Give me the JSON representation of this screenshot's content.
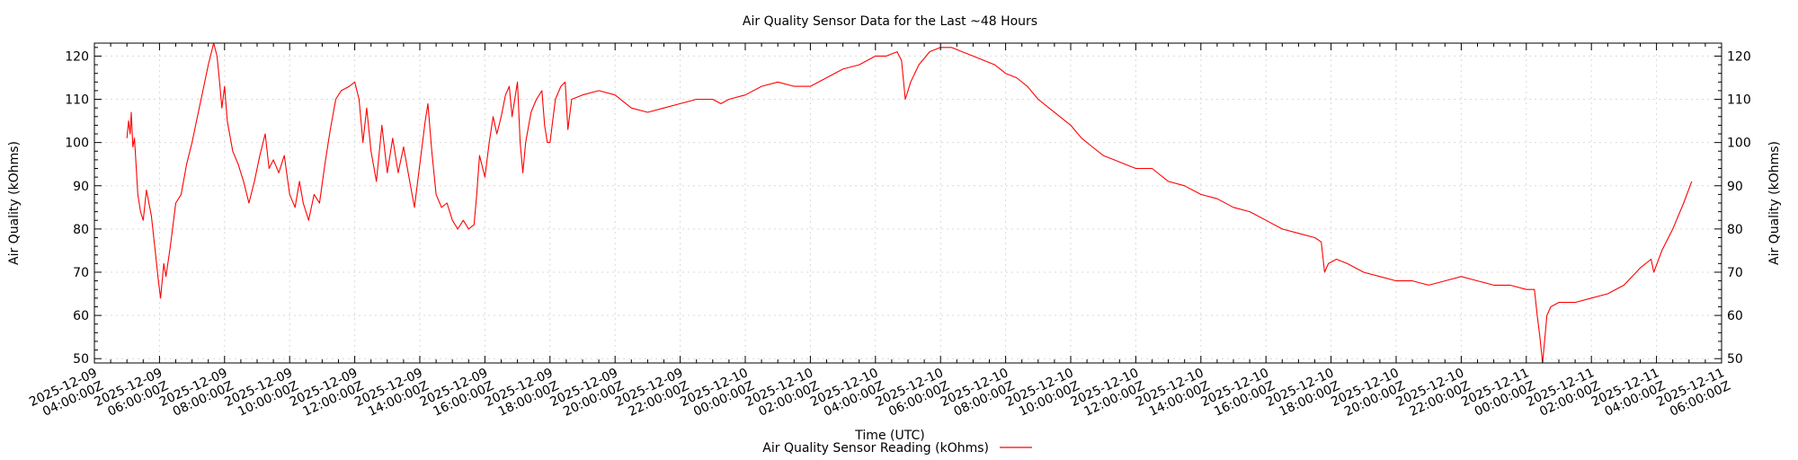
{
  "chart_data": {
    "type": "line",
    "title": "Air Quality Sensor Data for the Last ~48 Hours",
    "xlabel": "Time (UTC)",
    "ylabel": "Air Quality (kOhms)",
    "ylabel_right": "Air Quality (kOhms)",
    "ylim": [
      49,
      123
    ],
    "yticks": [
      50,
      60,
      70,
      80,
      90,
      100,
      110,
      120
    ],
    "xlim": [
      "2025-12-09T04:00:00Z",
      "2025-12-11T06:00:00Z"
    ],
    "xticks": [
      {
        "label_date": "2025-12-09",
        "label_time": "04:00:00Z",
        "t": "2025-12-09T04:00:00Z"
      },
      {
        "label_date": "2025-12-09",
        "label_time": "06:00:00Z",
        "t": "2025-12-09T06:00:00Z"
      },
      {
        "label_date": "2025-12-09",
        "label_time": "08:00:00Z",
        "t": "2025-12-09T08:00:00Z"
      },
      {
        "label_date": "2025-12-09",
        "label_time": "10:00:00Z",
        "t": "2025-12-09T10:00:00Z"
      },
      {
        "label_date": "2025-12-09",
        "label_time": "12:00:00Z",
        "t": "2025-12-09T12:00:00Z"
      },
      {
        "label_date": "2025-12-09",
        "label_time": "14:00:00Z",
        "t": "2025-12-09T14:00:00Z"
      },
      {
        "label_date": "2025-12-09",
        "label_time": "16:00:00Z",
        "t": "2025-12-09T16:00:00Z"
      },
      {
        "label_date": "2025-12-09",
        "label_time": "18:00:00Z",
        "t": "2025-12-09T18:00:00Z"
      },
      {
        "label_date": "2025-12-09",
        "label_time": "20:00:00Z",
        "t": "2025-12-09T20:00:00Z"
      },
      {
        "label_date": "2025-12-09",
        "label_time": "22:00:00Z",
        "t": "2025-12-09T22:00:00Z"
      },
      {
        "label_date": "2025-12-10",
        "label_time": "00:00:00Z",
        "t": "2025-12-10T00:00:00Z"
      },
      {
        "label_date": "2025-12-10",
        "label_time": "02:00:00Z",
        "t": "2025-12-10T02:00:00Z"
      },
      {
        "label_date": "2025-12-10",
        "label_time": "04:00:00Z",
        "t": "2025-12-10T04:00:00Z"
      },
      {
        "label_date": "2025-12-10",
        "label_time": "06:00:00Z",
        "t": "2025-12-10T06:00:00Z"
      },
      {
        "label_date": "2025-12-10",
        "label_time": "08:00:00Z",
        "t": "2025-12-10T08:00:00Z"
      },
      {
        "label_date": "2025-12-10",
        "label_time": "10:00:00Z",
        "t": "2025-12-10T10:00:00Z"
      },
      {
        "label_date": "2025-12-10",
        "label_time": "12:00:00Z",
        "t": "2025-12-10T12:00:00Z"
      },
      {
        "label_date": "2025-12-10",
        "label_time": "14:00:00Z",
        "t": "2025-12-10T14:00:00Z"
      },
      {
        "label_date": "2025-12-10",
        "label_time": "16:00:00Z",
        "t": "2025-12-10T16:00:00Z"
      },
      {
        "label_date": "2025-12-10",
        "label_time": "18:00:00Z",
        "t": "2025-12-10T18:00:00Z"
      },
      {
        "label_date": "2025-12-10",
        "label_time": "20:00:00Z",
        "t": "2025-12-10T20:00:00Z"
      },
      {
        "label_date": "2025-12-10",
        "label_time": "22:00:00Z",
        "t": "2025-12-10T22:00:00Z"
      },
      {
        "label_date": "2025-12-11",
        "label_time": "00:00:00Z",
        "t": "2025-12-11T00:00:00Z"
      },
      {
        "label_date": "2025-12-11",
        "label_time": "02:00:00Z",
        "t": "2025-12-11T02:00:00Z"
      },
      {
        "label_date": "2025-12-11",
        "label_time": "04:00:00Z",
        "t": "2025-12-11T04:00:00Z"
      },
      {
        "label_date": "2025-12-11",
        "label_time": "06:00:00Z",
        "t": "2025-12-11T06:00:00Z"
      }
    ],
    "grid": true,
    "legend_position": "bottom-center",
    "series": [
      {
        "name": "Air Quality Sensor Reading (kOhms)",
        "color": "#ff0000",
        "points": [
          [
            "2025-12-09T05:00:00Z",
            101
          ],
          [
            "2025-12-09T05:03:00Z",
            105
          ],
          [
            "2025-12-09T05:06:00Z",
            102
          ],
          [
            "2025-12-09T05:08:00Z",
            107
          ],
          [
            "2025-12-09T05:11:00Z",
            99
          ],
          [
            "2025-12-09T05:14:00Z",
            101
          ],
          [
            "2025-12-09T05:20:00Z",
            88
          ],
          [
            "2025-12-09T05:25:00Z",
            84
          ],
          [
            "2025-12-09T05:30:00Z",
            82
          ],
          [
            "2025-12-09T05:36:00Z",
            89
          ],
          [
            "2025-12-09T05:45:00Z",
            83
          ],
          [
            "2025-12-09T05:52:00Z",
            75
          ],
          [
            "2025-12-09T05:58:00Z",
            68
          ],
          [
            "2025-12-09T06:02:00Z",
            64
          ],
          [
            "2025-12-09T06:08:00Z",
            72
          ],
          [
            "2025-12-09T06:12:00Z",
            69
          ],
          [
            "2025-12-09T06:20:00Z",
            76
          ],
          [
            "2025-12-09T06:30:00Z",
            86
          ],
          [
            "2025-12-09T06:40:00Z",
            88
          ],
          [
            "2025-12-09T06:50:00Z",
            95
          ],
          [
            "2025-12-09T07:00:00Z",
            100
          ],
          [
            "2025-12-09T07:10:00Z",
            106
          ],
          [
            "2025-12-09T07:20:00Z",
            112
          ],
          [
            "2025-12-09T07:30:00Z",
            118
          ],
          [
            "2025-12-09T07:40:00Z",
            123
          ],
          [
            "2025-12-09T07:46:00Z",
            120
          ],
          [
            "2025-12-09T07:50:00Z",
            115
          ],
          [
            "2025-12-09T07:55:00Z",
            108
          ],
          [
            "2025-12-09T08:00:00Z",
            113
          ],
          [
            "2025-12-09T08:05:00Z",
            105
          ],
          [
            "2025-12-09T08:15:00Z",
            98
          ],
          [
            "2025-12-09T08:25:00Z",
            95
          ],
          [
            "2025-12-09T08:35:00Z",
            91
          ],
          [
            "2025-12-09T08:45:00Z",
            86
          ],
          [
            "2025-12-09T08:55:00Z",
            91
          ],
          [
            "2025-12-09T09:05:00Z",
            97
          ],
          [
            "2025-12-09T09:15:00Z",
            102
          ],
          [
            "2025-12-09T09:22:00Z",
            94
          ],
          [
            "2025-12-09T09:30:00Z",
            96
          ],
          [
            "2025-12-09T09:40:00Z",
            93
          ],
          [
            "2025-12-09T09:50:00Z",
            97
          ],
          [
            "2025-12-09T10:00:00Z",
            88
          ],
          [
            "2025-12-09T10:10:00Z",
            85
          ],
          [
            "2025-12-09T10:18:00Z",
            91
          ],
          [
            "2025-12-09T10:25:00Z",
            86
          ],
          [
            "2025-12-09T10:35:00Z",
            82
          ],
          [
            "2025-12-09T10:45:00Z",
            88
          ],
          [
            "2025-12-09T10:55:00Z",
            86
          ],
          [
            "2025-12-09T11:05:00Z",
            95
          ],
          [
            "2025-12-09T11:15:00Z",
            103
          ],
          [
            "2025-12-09T11:25:00Z",
            110
          ],
          [
            "2025-12-09T11:35:00Z",
            112
          ],
          [
            "2025-12-09T11:50:00Z",
            113
          ],
          [
            "2025-12-09T12:00:00Z",
            114
          ],
          [
            "2025-12-09T12:08:00Z",
            110
          ],
          [
            "2025-12-09T12:15:00Z",
            100
          ],
          [
            "2025-12-09T12:22:00Z",
            108
          ],
          [
            "2025-12-09T12:30:00Z",
            98
          ],
          [
            "2025-12-09T12:40:00Z",
            91
          ],
          [
            "2025-12-09T12:50:00Z",
            104
          ],
          [
            "2025-12-09T13:00:00Z",
            93
          ],
          [
            "2025-12-09T13:10:00Z",
            101
          ],
          [
            "2025-12-09T13:20:00Z",
            93
          ],
          [
            "2025-12-09T13:30:00Z",
            99
          ],
          [
            "2025-12-09T13:40:00Z",
            92
          ],
          [
            "2025-12-09T13:50:00Z",
            85
          ],
          [
            "2025-12-09T14:00:00Z",
            95
          ],
          [
            "2025-12-09T14:10:00Z",
            105
          ],
          [
            "2025-12-09T14:15:00Z",
            109
          ],
          [
            "2025-12-09T14:22:00Z",
            98
          ],
          [
            "2025-12-09T14:30:00Z",
            88
          ],
          [
            "2025-12-09T14:40:00Z",
            85
          ],
          [
            "2025-12-09T14:50:00Z",
            86
          ],
          [
            "2025-12-09T15:00:00Z",
            82
          ],
          [
            "2025-12-09T15:10:00Z",
            80
          ],
          [
            "2025-12-09T15:20:00Z",
            82
          ],
          [
            "2025-12-09T15:30:00Z",
            80
          ],
          [
            "2025-12-09T15:40:00Z",
            81
          ],
          [
            "2025-12-09T15:45:00Z",
            88
          ],
          [
            "2025-12-09T15:50:00Z",
            97
          ],
          [
            "2025-12-09T16:00:00Z",
            92
          ],
          [
            "2025-12-09T16:08:00Z",
            100
          ],
          [
            "2025-12-09T16:15:00Z",
            106
          ],
          [
            "2025-12-09T16:22:00Z",
            102
          ],
          [
            "2025-12-09T16:30:00Z",
            106
          ],
          [
            "2025-12-09T16:38:00Z",
            111
          ],
          [
            "2025-12-09T16:45:00Z",
            113
          ],
          [
            "2025-12-09T16:50:00Z",
            106
          ],
          [
            "2025-12-09T16:55:00Z",
            110
          ],
          [
            "2025-12-09T17:00:00Z",
            114
          ],
          [
            "2025-12-09T17:05:00Z",
            100
          ],
          [
            "2025-12-09T17:10:00Z",
            93
          ],
          [
            "2025-12-09T17:15:00Z",
            100
          ],
          [
            "2025-12-09T17:25:00Z",
            107
          ],
          [
            "2025-12-09T17:35:00Z",
            110
          ],
          [
            "2025-12-09T17:45:00Z",
            112
          ],
          [
            "2025-12-09T17:50:00Z",
            104
          ],
          [
            "2025-12-09T17:55:00Z",
            100
          ],
          [
            "2025-12-09T18:00:00Z",
            100
          ],
          [
            "2025-12-09T18:10:00Z",
            110
          ],
          [
            "2025-12-09T18:20:00Z",
            113
          ],
          [
            "2025-12-09T18:28:00Z",
            114
          ],
          [
            "2025-12-09T18:33:00Z",
            103
          ],
          [
            "2025-12-09T18:40:00Z",
            110
          ],
          [
            "2025-12-09T19:00:00Z",
            111
          ],
          [
            "2025-12-09T19:30:00Z",
            112
          ],
          [
            "2025-12-09T20:00:00Z",
            111
          ],
          [
            "2025-12-09T20:30:00Z",
            108
          ],
          [
            "2025-12-09T21:00:00Z",
            107
          ],
          [
            "2025-12-09T21:30:00Z",
            108
          ],
          [
            "2025-12-09T22:00:00Z",
            109
          ],
          [
            "2025-12-09T22:30:00Z",
            110
          ],
          [
            "2025-12-09T23:00:00Z",
            110
          ],
          [
            "2025-12-09T23:15:00Z",
            109
          ],
          [
            "2025-12-09T23:30:00Z",
            110
          ],
          [
            "2025-12-10T00:00:00Z",
            111
          ],
          [
            "2025-12-10T00:30:00Z",
            113
          ],
          [
            "2025-12-10T01:00:00Z",
            114
          ],
          [
            "2025-12-10T01:30:00Z",
            113
          ],
          [
            "2025-12-10T02:00:00Z",
            113
          ],
          [
            "2025-12-10T02:30:00Z",
            115
          ],
          [
            "2025-12-10T03:00:00Z",
            117
          ],
          [
            "2025-12-10T03:30:00Z",
            118
          ],
          [
            "2025-12-10T04:00:00Z",
            120
          ],
          [
            "2025-12-10T04:20:00Z",
            120
          ],
          [
            "2025-12-10T04:40:00Z",
            121
          ],
          [
            "2025-12-10T04:48:00Z",
            119
          ],
          [
            "2025-12-10T04:55:00Z",
            110
          ],
          [
            "2025-12-10T05:05:00Z",
            114
          ],
          [
            "2025-12-10T05:20:00Z",
            118
          ],
          [
            "2025-12-10T05:40:00Z",
            121
          ],
          [
            "2025-12-10T06:00:00Z",
            122
          ],
          [
            "2025-12-10T06:20:00Z",
            122
          ],
          [
            "2025-12-10T06:40:00Z",
            121
          ],
          [
            "2025-12-10T07:00:00Z",
            120
          ],
          [
            "2025-12-10T07:20:00Z",
            119
          ],
          [
            "2025-12-10T07:40:00Z",
            118
          ],
          [
            "2025-12-10T08:00:00Z",
            116
          ],
          [
            "2025-12-10T08:20:00Z",
            115
          ],
          [
            "2025-12-10T08:40:00Z",
            113
          ],
          [
            "2025-12-10T09:00:00Z",
            110
          ],
          [
            "2025-12-10T09:20:00Z",
            108
          ],
          [
            "2025-12-10T09:40:00Z",
            106
          ],
          [
            "2025-12-10T10:00:00Z",
            104
          ],
          [
            "2025-12-10T10:20:00Z",
            101
          ],
          [
            "2025-12-10T10:40:00Z",
            99
          ],
          [
            "2025-12-10T11:00:00Z",
            97
          ],
          [
            "2025-12-10T11:20:00Z",
            96
          ],
          [
            "2025-12-10T11:40:00Z",
            95
          ],
          [
            "2025-12-10T12:00:00Z",
            94
          ],
          [
            "2025-12-10T12:30:00Z",
            94
          ],
          [
            "2025-12-10T13:00:00Z",
            91
          ],
          [
            "2025-12-10T13:30:00Z",
            90
          ],
          [
            "2025-12-10T14:00:00Z",
            88
          ],
          [
            "2025-12-10T14:30:00Z",
            87
          ],
          [
            "2025-12-10T15:00:00Z",
            85
          ],
          [
            "2025-12-10T15:30:00Z",
            84
          ],
          [
            "2025-12-10T16:00:00Z",
            82
          ],
          [
            "2025-12-10T16:30:00Z",
            80
          ],
          [
            "2025-12-10T17:00:00Z",
            79
          ],
          [
            "2025-12-10T17:30:00Z",
            78
          ],
          [
            "2025-12-10T17:42:00Z",
            77
          ],
          [
            "2025-12-10T17:48:00Z",
            70
          ],
          [
            "2025-12-10T17:55:00Z",
            72
          ],
          [
            "2025-12-10T18:10:00Z",
            73
          ],
          [
            "2025-12-10T18:30:00Z",
            72
          ],
          [
            "2025-12-10T19:00:00Z",
            70
          ],
          [
            "2025-12-10T19:30:00Z",
            69
          ],
          [
            "2025-12-10T20:00:00Z",
            68
          ],
          [
            "2025-12-10T20:30:00Z",
            68
          ],
          [
            "2025-12-10T21:00:00Z",
            67
          ],
          [
            "2025-12-10T21:30:00Z",
            68
          ],
          [
            "2025-12-10T22:00:00Z",
            69
          ],
          [
            "2025-12-10T22:30:00Z",
            68
          ],
          [
            "2025-12-10T23:00:00Z",
            67
          ],
          [
            "2025-12-10T23:30:00Z",
            67
          ],
          [
            "2025-12-11T00:00:00Z",
            66
          ],
          [
            "2025-12-11T00:15:00Z",
            66
          ],
          [
            "2025-12-11T00:20:00Z",
            60
          ],
          [
            "2025-12-11T00:25:00Z",
            55
          ],
          [
            "2025-12-11T00:30:00Z",
            49
          ],
          [
            "2025-12-11T00:38:00Z",
            60
          ],
          [
            "2025-12-11T00:45:00Z",
            62
          ],
          [
            "2025-12-11T01:00:00Z",
            63
          ],
          [
            "2025-12-11T01:30:00Z",
            63
          ],
          [
            "2025-12-11T02:00:00Z",
            64
          ],
          [
            "2025-12-11T02:30:00Z",
            65
          ],
          [
            "2025-12-11T03:00:00Z",
            67
          ],
          [
            "2025-12-11T03:30:00Z",
            71
          ],
          [
            "2025-12-11T03:50:00Z",
            73
          ],
          [
            "2025-12-11T03:55:00Z",
            70
          ],
          [
            "2025-12-11T04:10:00Z",
            75
          ],
          [
            "2025-12-11T04:30:00Z",
            80
          ],
          [
            "2025-12-11T04:50:00Z",
            86
          ],
          [
            "2025-12-11T05:05:00Z",
            91
          ]
        ]
      }
    ]
  }
}
